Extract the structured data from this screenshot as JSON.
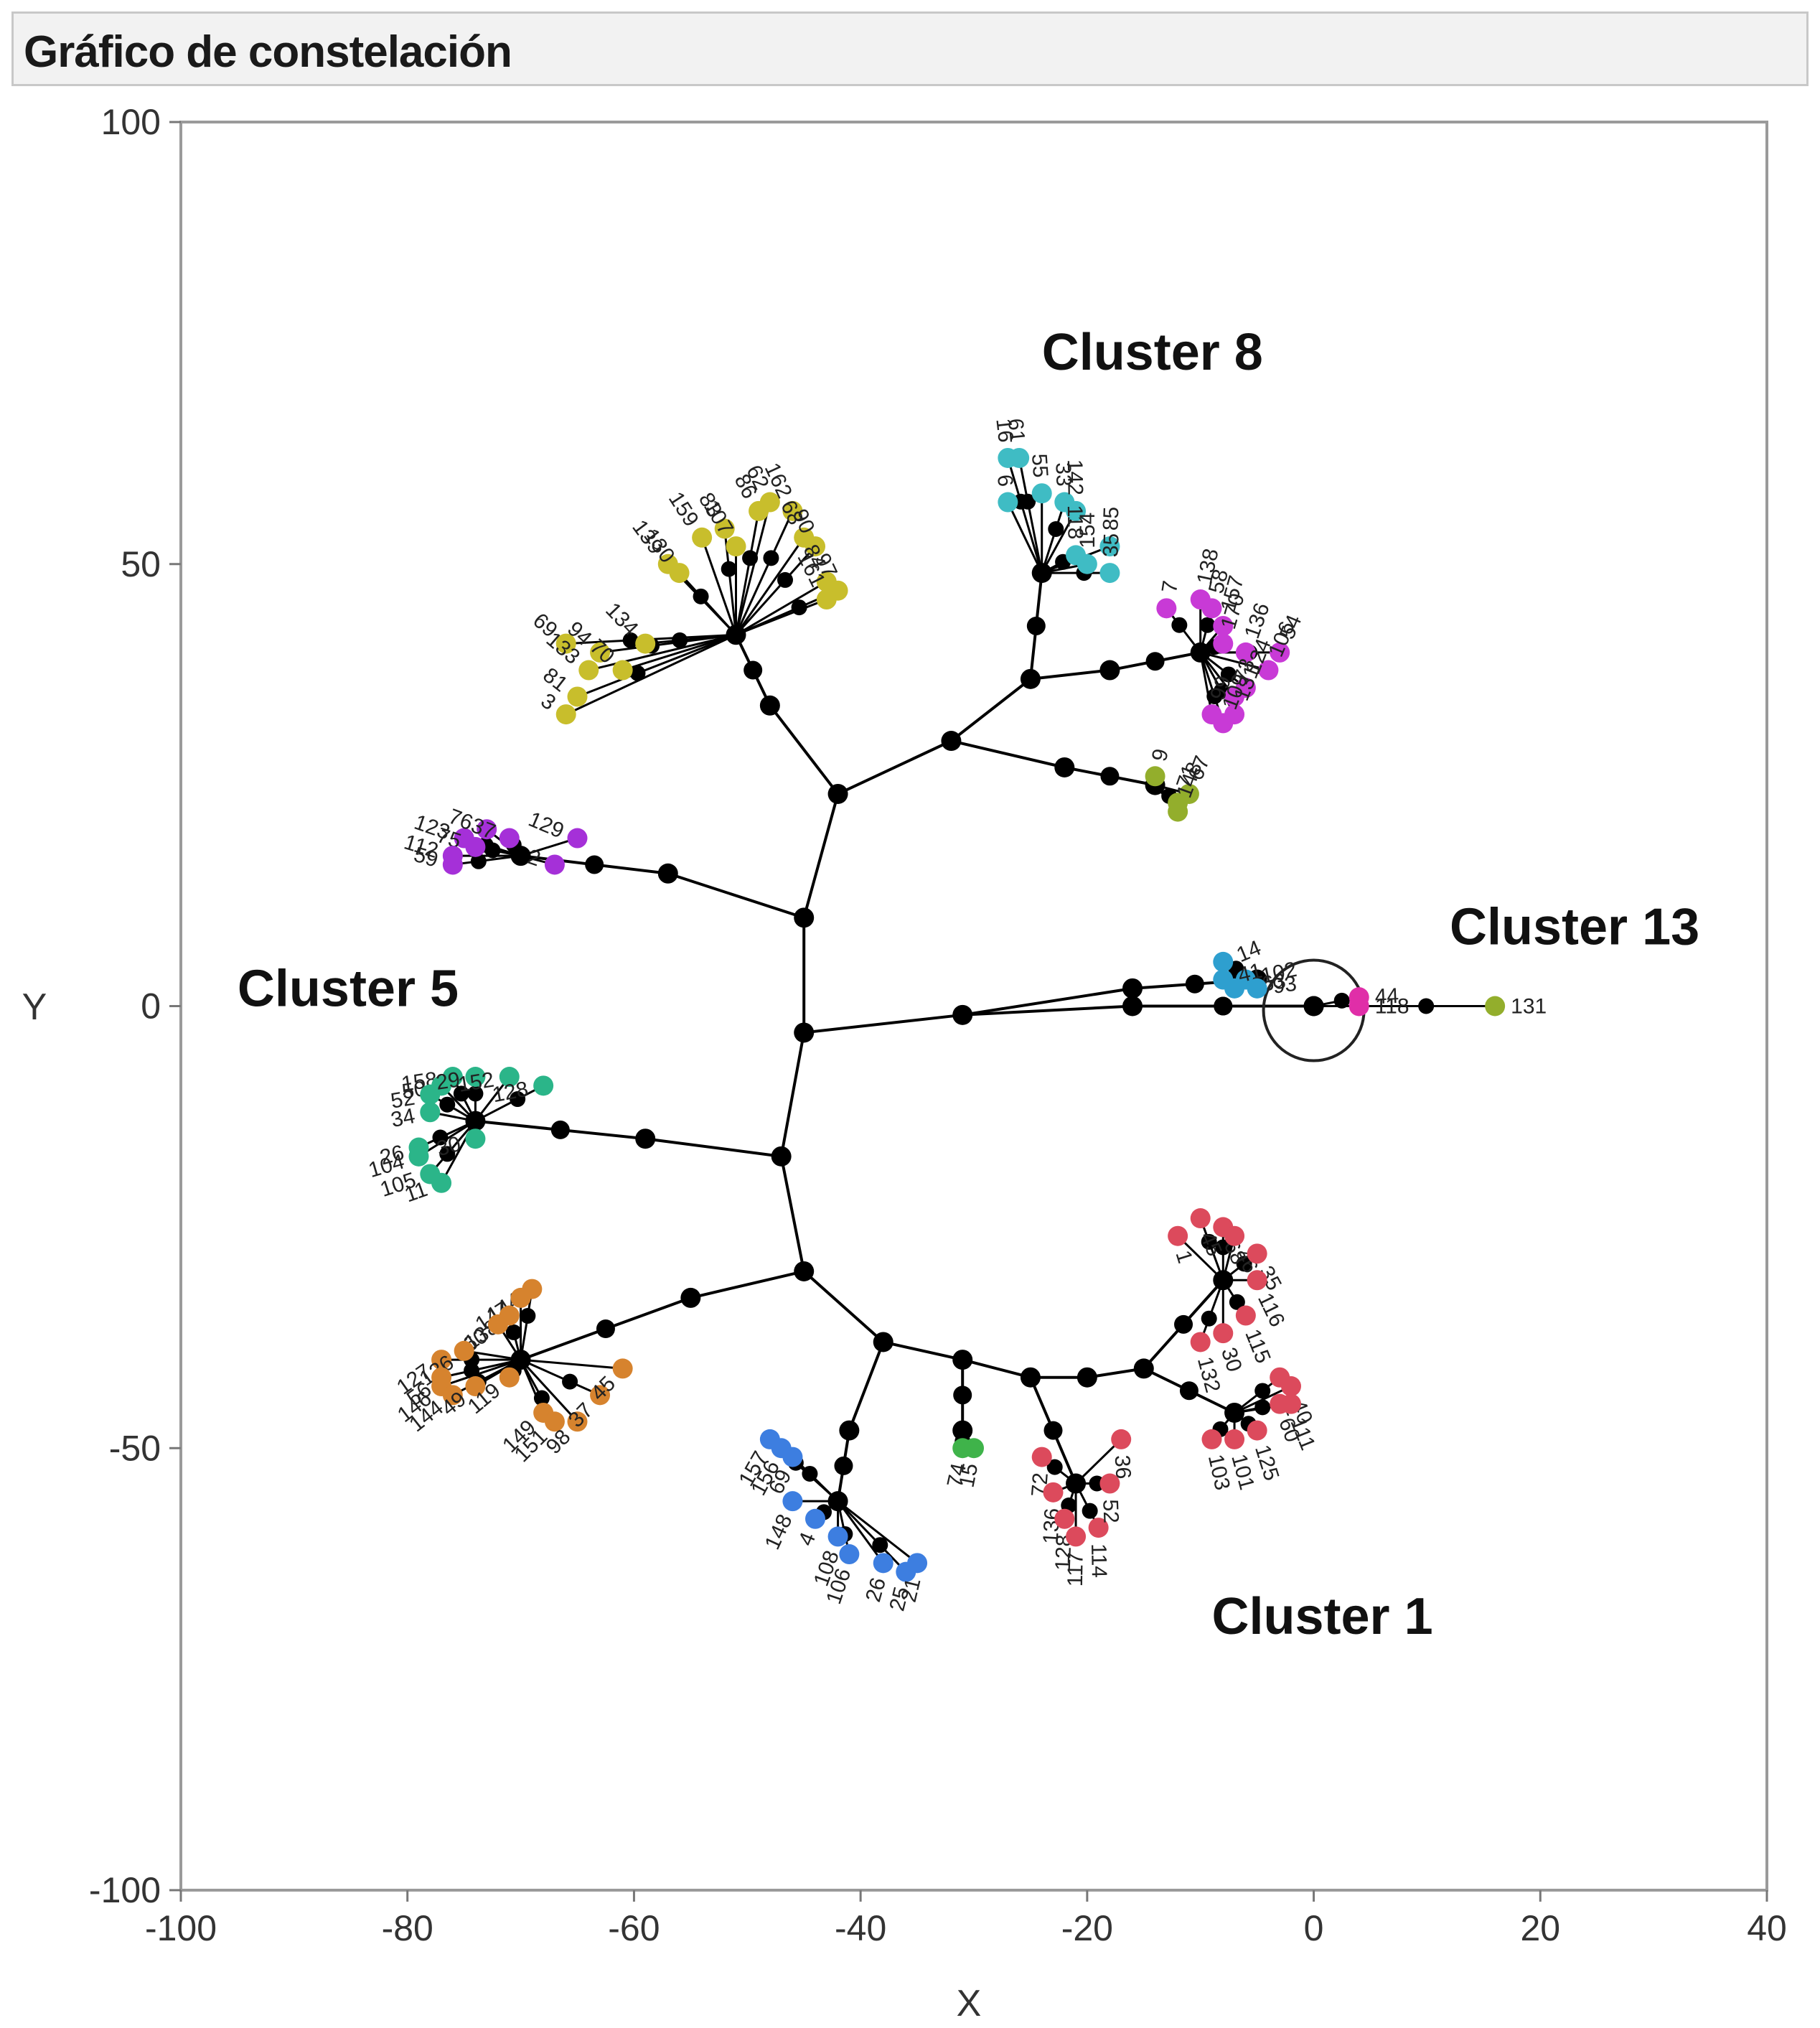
{
  "window": {
    "title": "Gráfico de constelación"
  },
  "colors": {
    "node": "#000000",
    "edge": "#000000",
    "olive": "#c8be2c",
    "teal": "#3fbcc4",
    "magenta": "#c83ad6",
    "purple": "#a530d8",
    "lime": "#93ae2c",
    "sky": "#2e9fcf",
    "pink": "#e02ea8",
    "green_teal": "#2bb589",
    "orange": "#d6832e",
    "blue": "#3d7ee0",
    "green": "#3fb34a",
    "red": "#dc4a5c"
  },
  "chart_data": {
    "type": "scatter",
    "xlabel": "X",
    "ylabel": "Y",
    "xlim": [
      -100,
      40
    ],
    "ylim": [
      -100,
      100
    ],
    "xticks": [
      "-100",
      "-80",
      "-60",
      "-40",
      "-20",
      "0",
      "20",
      "40"
    ],
    "yticks": [
      "100",
      "50",
      "0",
      "-50",
      "-100"
    ],
    "annotations": [
      {
        "text": "Cluster 8",
        "x": -24,
        "y": 72
      },
      {
        "text": "Cluster 13",
        "x": 12,
        "y": 7
      },
      {
        "text": "Cluster 5",
        "x": -95,
        "y": 0
      },
      {
        "text": "Cluster 1",
        "x": -9,
        "y": -71
      }
    ],
    "circle_marker": {
      "x": 0,
      "y": 0
    },
    "internal_nodes": [
      {
        "id": "root",
        "x": -45,
        "y": -3
      },
      {
        "id": "u1",
        "x": -45,
        "y": 10
      },
      {
        "id": "u2",
        "x": -42,
        "y": 24
      },
      {
        "id": "u3",
        "x": -48,
        "y": 34
      },
      {
        "id": "u4",
        "x": -32,
        "y": 30
      },
      {
        "id": "u5",
        "x": -25,
        "y": 37
      },
      {
        "id": "u6",
        "x": -18,
        "y": 38
      },
      {
        "id": "u7",
        "x": -22,
        "y": 27
      },
      {
        "id": "ul",
        "x": -57,
        "y": 15
      },
      {
        "id": "r1",
        "x": -31,
        "y": -1
      },
      {
        "id": "r2",
        "x": -16,
        "y": 2
      },
      {
        "id": "r3",
        "x": -16,
        "y": 0
      },
      {
        "id": "d1",
        "x": -47,
        "y": -17
      },
      {
        "id": "d2",
        "x": -45,
        "y": -30
      },
      {
        "id": "d3",
        "x": -38,
        "y": -38
      },
      {
        "id": "d4",
        "x": -31,
        "y": -40
      },
      {
        "id": "d5",
        "x": -25,
        "y": -42
      },
      {
        "id": "d6",
        "x": -20,
        "y": -42
      },
      {
        "id": "d7",
        "x": -15,
        "y": -41
      },
      {
        "id": "l1",
        "x": -59,
        "y": -15
      },
      {
        "id": "l2",
        "x": -55,
        "y": -33
      },
      {
        "id": "bl",
        "x": -41,
        "y": -48
      }
    ],
    "edges": [
      [
        "root",
        "u1"
      ],
      [
        "u1",
        "u2"
      ],
      [
        "u2",
        "u3"
      ],
      [
        "u2",
        "u4"
      ],
      [
        "u4",
        "u5"
      ],
      [
        "u5",
        "u6"
      ],
      [
        "u4",
        "u7"
      ],
      [
        "u1",
        "ul"
      ],
      [
        "root",
        "r1"
      ],
      [
        "r1",
        "r2"
      ],
      [
        "r1",
        "r3"
      ],
      [
        "root",
        "d1"
      ],
      [
        "d1",
        "d2"
      ],
      [
        "d2",
        "d3"
      ],
      [
        "d3",
        "d4"
      ],
      [
        "d4",
        "d5"
      ],
      [
        "d5",
        "d6"
      ],
      [
        "d6",
        "d7"
      ],
      [
        "d1",
        "l1"
      ],
      [
        "d2",
        "l2"
      ],
      [
        "d3",
        "bl"
      ]
    ],
    "series": [
      {
        "color_key": "olive",
        "parent": "u3",
        "hub": [
          -51,
          42
        ],
        "leaves": [
          {
            "label": "69",
            "x": -66,
            "y": 41
          },
          {
            "label": "3",
            "x": -66,
            "y": 33
          },
          {
            "label": "81",
            "x": -65,
            "y": 35
          },
          {
            "label": "133",
            "x": -64,
            "y": 38
          },
          {
            "label": "94",
            "x": -63,
            "y": 40
          },
          {
            "label": "70",
            "x": -61,
            "y": 38
          },
          {
            "label": "134",
            "x": -59,
            "y": 41
          },
          {
            "label": "139",
            "x": -57,
            "y": 50
          },
          {
            "label": "130",
            "x": -56,
            "y": 49
          },
          {
            "label": "159",
            "x": -54,
            "y": 53
          },
          {
            "label": "83",
            "x": -52,
            "y": 54
          },
          {
            "label": "107",
            "x": -51,
            "y": 52
          },
          {
            "label": "86",
            "x": -49,
            "y": 56
          },
          {
            "label": "62",
            "x": -48,
            "y": 57
          },
          {
            "label": "162",
            "x": -46,
            "y": 56
          },
          {
            "label": "68",
            "x": -45,
            "y": 53
          },
          {
            "label": "90",
            "x": -44,
            "y": 52
          },
          {
            "label": "84",
            "x": -43,
            "y": 48
          },
          {
            "label": "97",
            "x": -42,
            "y": 47
          },
          {
            "label": "161",
            "x": -43,
            "y": 46
          }
        ]
      },
      {
        "color_key": "teal",
        "parent": "u5",
        "hub": [
          -24,
          49
        ],
        "leaves": [
          {
            "label": "16",
            "x": -27,
            "y": 62
          },
          {
            "label": "6",
            "x": -27,
            "y": 57
          },
          {
            "label": "61",
            "x": -26,
            "y": 62
          },
          {
            "label": "55",
            "x": -24,
            "y": 58
          },
          {
            "label": "33",
            "x": -22,
            "y": 57
          },
          {
            "label": "142",
            "x": -21,
            "y": 56
          },
          {
            "label": "118",
            "x": -21,
            "y": 51
          },
          {
            "label": "85",
            "x": -18,
            "y": 52
          },
          {
            "label": "35",
            "x": -18,
            "y": 49
          },
          {
            "label": "154",
            "x": -20,
            "y": 50
          }
        ]
      },
      {
        "color_key": "magenta",
        "parent": "u6",
        "hub": [
          -10,
          40
        ],
        "leaves": [
          {
            "label": "7",
            "x": -13,
            "y": 45
          },
          {
            "label": "138",
            "x": -10,
            "y": 46
          },
          {
            "label": "58",
            "x": -9,
            "y": 45
          },
          {
            "label": "157",
            "x": -8,
            "y": 43
          },
          {
            "label": "170",
            "x": -8,
            "y": 41
          },
          {
            "label": "136",
            "x": -6,
            "y": 40
          },
          {
            "label": "54",
            "x": -3,
            "y": 40
          },
          {
            "label": "106",
            "x": -4,
            "y": 38
          },
          {
            "label": "124",
            "x": -6,
            "y": 36
          },
          {
            "label": "73",
            "x": -7,
            "y": 35
          },
          {
            "label": "131",
            "x": -7,
            "y": 33
          },
          {
            "label": "99",
            "x": -9,
            "y": 33
          },
          {
            "label": "109",
            "x": -8,
            "y": 32
          }
        ]
      },
      {
        "color_key": "lime",
        "parent": "u7",
        "hub": [
          -14,
          25
        ],
        "leaves": [
          {
            "label": "9",
            "x": -14,
            "y": 26
          },
          {
            "label": "67",
            "x": -11,
            "y": 24
          },
          {
            "label": "71",
            "x": -12,
            "y": 23
          },
          {
            "label": "148",
            "x": -12,
            "y": 22
          }
        ]
      },
      {
        "color_key": "purple",
        "parent": "ul",
        "hub": [
          -70,
          17
        ],
        "leaves": [
          {
            "label": "123",
            "x": -75,
            "y": 19
          },
          {
            "label": "76",
            "x": -73,
            "y": 20
          },
          {
            "label": "75",
            "x": -74,
            "y": 18
          },
          {
            "label": "112",
            "x": -76,
            "y": 17
          },
          {
            "label": "59",
            "x": -76,
            "y": 16
          },
          {
            "label": "129",
            "x": -65,
            "y": 19
          },
          {
            "label": "37",
            "x": -71,
            "y": 19
          },
          {
            "label": "2",
            "x": -67,
            "y": 16
          }
        ]
      },
      {
        "color_key": "sky",
        "parent": "r2",
        "hub": [
          -5,
          3
        ],
        "leaves": [
          {
            "label": "14",
            "x": -8,
            "y": 5
          },
          {
            "label": "102",
            "x": -6,
            "y": 3
          },
          {
            "label": "41",
            "x": -8,
            "y": 3
          },
          {
            "label": "163",
            "x": -7,
            "y": 2
          },
          {
            "label": "93",
            "x": -5,
            "y": 2
          }
        ]
      },
      {
        "color_key": "pink",
        "parent": "r3",
        "hub": [
          0,
          0
        ],
        "leaves": [
          {
            "label": "44",
            "x": 4,
            "y": 1
          },
          {
            "label": "118",
            "x": 4,
            "y": 0
          }
        ]
      },
      {
        "color_key": "lime",
        "parent": "r3",
        "hub": [
          0,
          0
        ],
        "leaves": [
          {
            "label": "131",
            "x": 16,
            "y": 0
          }
        ]
      },
      {
        "color_key": "green_teal",
        "parent": "l1",
        "hub": [
          -74,
          -13
        ],
        "leaves": [
          {
            "label": "158",
            "x": -76,
            "y": -8
          },
          {
            "label": "50",
            "x": -77,
            "y": -9
          },
          {
            "label": "52",
            "x": -78,
            "y": -10
          },
          {
            "label": "34",
            "x": -78,
            "y": -12
          },
          {
            "label": "29",
            "x": -74,
            "y": -8
          },
          {
            "label": "152",
            "x": -71,
            "y": -8
          },
          {
            "label": "128",
            "x": -68,
            "y": -9
          },
          {
            "label": "30",
            "x": -74,
            "y": -15
          },
          {
            "label": "26",
            "x": -79,
            "y": -16
          },
          {
            "label": "104",
            "x": -79,
            "y": -17
          },
          {
            "label": "105",
            "x": -78,
            "y": -19
          },
          {
            "label": "11",
            "x": -77,
            "y": -20
          }
        ]
      },
      {
        "color_key": "orange",
        "parent": "l2",
        "hub": [
          -70,
          -40
        ],
        "leaves": [
          {
            "label": "144",
            "x": -69,
            "y": -32
          },
          {
            "label": "147",
            "x": -70,
            "y": -33
          },
          {
            "label": "138",
            "x": -71,
            "y": -35
          },
          {
            "label": "60",
            "x": -72,
            "y": -36
          },
          {
            "label": "127",
            "x": -77,
            "y": -40
          },
          {
            "label": "136",
            "x": -75,
            "y": -39
          },
          {
            "label": "56",
            "x": -77,
            "y": -42
          },
          {
            "label": "146",
            "x": -77,
            "y": -43
          },
          {
            "label": "144",
            "x": -76,
            "y": -44
          },
          {
            "label": "49",
            "x": -74,
            "y": -43
          },
          {
            "label": "119",
            "x": -71,
            "y": -42
          },
          {
            "label": "149",
            "x": -68,
            "y": -46
          },
          {
            "label": "151",
            "x": -67,
            "y": -47
          },
          {
            "label": "98",
            "x": -65,
            "y": -47
          },
          {
            "label": "37",
            "x": -63,
            "y": -44
          },
          {
            "label": "45",
            "x": -61,
            "y": -41
          }
        ]
      },
      {
        "color_key": "blue",
        "parent": "bl",
        "hub": [
          -42,
          -56
        ],
        "leaves": [
          {
            "label": "157",
            "x": -48,
            "y": -49
          },
          {
            "label": "156",
            "x": -47,
            "y": -50
          },
          {
            "label": "69",
            "x": -46,
            "y": -51
          },
          {
            "label": "148",
            "x": -46,
            "y": -56
          },
          {
            "label": "4",
            "x": -44,
            "y": -58
          },
          {
            "label": "108",
            "x": -42,
            "y": -60
          },
          {
            "label": "106",
            "x": -41,
            "y": -62
          },
          {
            "label": "26",
            "x": -38,
            "y": -63
          },
          {
            "label": "25",
            "x": -36,
            "y": -64
          },
          {
            "label": "21",
            "x": -35,
            "y": -63
          }
        ]
      },
      {
        "color_key": "green",
        "parent": "d4",
        "hub": [
          -31,
          -48
        ],
        "leaves": [
          {
            "label": "74",
            "x": -31,
            "y": -50
          },
          {
            "label": "15",
            "x": -30,
            "y": -50
          }
        ]
      },
      {
        "color_key": "red",
        "parent": "d5",
        "hub": [
          -21,
          -54
        ],
        "leaves": [
          {
            "label": "72",
            "x": -24,
            "y": -51
          },
          {
            "label": "136",
            "x": -23,
            "y": -55
          },
          {
            "label": "128",
            "x": -22,
            "y": -58
          },
          {
            "label": "117",
            "x": -21,
            "y": -60
          },
          {
            "label": "114",
            "x": -19,
            "y": -59
          },
          {
            "label": "36",
            "x": -17,
            "y": -49
          },
          {
            "label": "52",
            "x": -18,
            "y": -54
          }
        ]
      },
      {
        "color_key": "red",
        "parent": "d7",
        "hub": [
          -8,
          -31
        ],
        "leaves": [
          {
            "label": "45",
            "x": -10,
            "y": -24
          },
          {
            "label": "1",
            "x": -12,
            "y": -26
          },
          {
            "label": "68",
            "x": -8,
            "y": -25
          },
          {
            "label": "46",
            "x": -7,
            "y": -26
          },
          {
            "label": "35",
            "x": -5,
            "y": -28
          },
          {
            "label": "116",
            "x": -5,
            "y": -31
          },
          {
            "label": "115",
            "x": -6,
            "y": -35
          },
          {
            "label": "30",
            "x": -8,
            "y": -37
          },
          {
            "label": "132",
            "x": -10,
            "y": -38
          }
        ]
      },
      {
        "color_key": "red",
        "parent": "d7",
        "hub": [
          -7,
          -46
        ],
        "leaves": [
          {
            "label": "22",
            "x": -3,
            "y": -42
          },
          {
            "label": "40",
            "x": -2,
            "y": -43
          },
          {
            "label": "60",
            "x": -3,
            "y": -45
          },
          {
            "label": "111",
            "x": -2,
            "y": -45
          },
          {
            "label": "125",
            "x": -5,
            "y": -48
          },
          {
            "label": "101",
            "x": -7,
            "y": -49
          },
          {
            "label": "103",
            "x": -9,
            "y": -49
          }
        ]
      }
    ]
  }
}
